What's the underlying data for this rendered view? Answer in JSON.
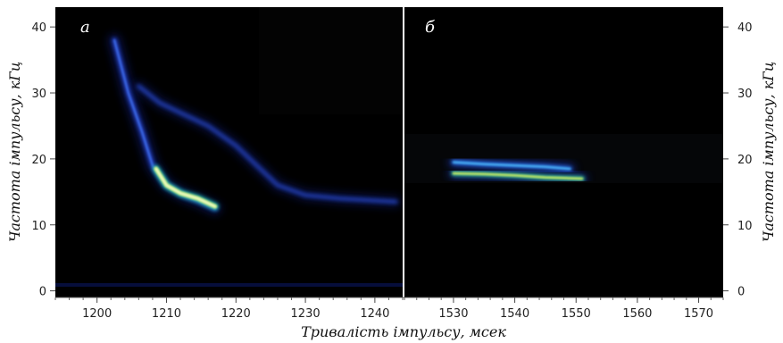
{
  "chart_data": [
    {
      "type": "heatmap",
      "panel_label": "а",
      "xlabel": "Тривалість імпульсу, мсек",
      "ylabel": "Частота імпульсу, кГц",
      "xlim": [
        1194,
        1244
      ],
      "ylim": [
        -1,
        43
      ],
      "x_ticks": [
        "1200",
        "1210",
        "1220",
        "1230",
        "1240"
      ],
      "y_ticks": [
        "0",
        "10",
        "20",
        "30",
        "40"
      ],
      "traces": [
        {
          "name": "",
          "points": [
            [
              1202.5,
              38
            ],
            [
              1204.5,
              30
            ],
            [
              1206.5,
              24
            ],
            [
              1208,
              19
            ],
            [
              1210,
              16
            ],
            [
              1212.5,
              14.5
            ],
            [
              1215,
              13.5
            ],
            [
              1217,
              12.5
            ]
          ]
        },
        {
          "name": "",
          "points": [
            [
              1206,
              31
            ],
            [
              1209,
              28.5
            ],
            [
              1212,
              27
            ],
            [
              1216,
              25
            ],
            [
              1220,
              22
            ],
            [
              1223,
              19
            ],
            [
              1226,
              16
            ],
            [
              1230,
              14.5
            ],
            [
              1235,
              14
            ],
            [
              1243,
              13.5
            ]
          ]
        },
        {
          "name": "",
          "points": [
            [
              1208.5,
              18.5
            ],
            [
              1210,
              16
            ],
            [
              1212,
              14.8
            ],
            [
              1214.5,
              14
            ],
            [
              1217,
              12.8
            ]
          ]
        }
      ]
    },
    {
      "type": "heatmap",
      "panel_label": "б",
      "xlabel": "Тривалість імпульсу, мсек",
      "ylabel": "Частота імпульсу, кГц",
      "xlim": [
        1522,
        1574
      ],
      "ylim": [
        -1,
        43
      ],
      "x_ticks": [
        "1530",
        "1540",
        "1550",
        "1560",
        "1570"
      ],
      "y_ticks": [
        "0",
        "10",
        "20",
        "30",
        "40"
      ],
      "traces": [
        {
          "name": "",
          "points": [
            [
              1530,
              19.5
            ],
            [
              1535,
              19.2
            ],
            [
              1540,
              19
            ],
            [
              1545,
              18.8
            ],
            [
              1549,
              18.5
            ]
          ]
        },
        {
          "name": "",
          "points": [
            [
              1530,
              17.8
            ],
            [
              1535,
              17.7
            ],
            [
              1540,
              17.5
            ],
            [
              1545,
              17.2
            ],
            [
              1551,
              17
            ]
          ]
        }
      ]
    }
  ]
}
